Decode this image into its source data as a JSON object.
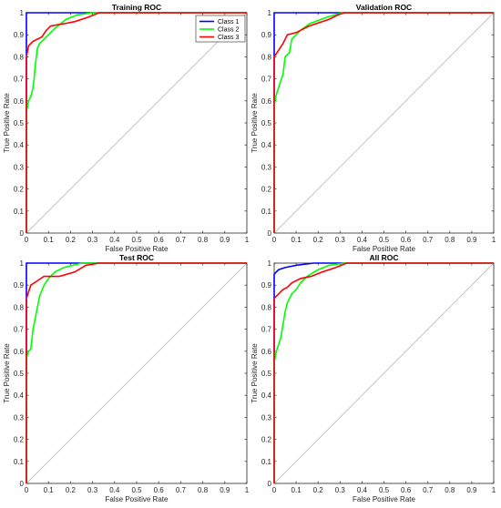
{
  "chart_data": [
    {
      "type": "line",
      "title": "Training ROC",
      "xlabel": "False Positive Rate",
      "ylabel": "True Positive Rate",
      "xlim": [
        0,
        1
      ],
      "ylim": [
        0,
        1
      ],
      "x_ticks": [
        "0",
        "0.1",
        "0.2",
        "0.3",
        "0.4",
        "0.5",
        "0.6",
        "0.7",
        "0.8",
        "0.9",
        "1"
      ],
      "y_ticks": [
        "0",
        "0.1",
        "0.2",
        "0.3",
        "0.4",
        "0.5",
        "0.6",
        "0.7",
        "0.8",
        "0.9",
        "1"
      ],
      "grid": false,
      "legend": {
        "placement": "top-right",
        "entries": [
          "Class 1",
          "Class 2",
          "Class 3"
        ]
      },
      "diagonal_color": "#bdbdbd",
      "series": [
        {
          "name": "Class 1",
          "color": "#0000ff",
          "points": [
            [
              0,
              0
            ],
            [
              0,
              0.8
            ],
            [
              0,
              1
            ],
            [
              0.17,
              1
            ],
            [
              1,
              1
            ]
          ]
        },
        {
          "name": "Class 2",
          "color": "#00ff00",
          "points": [
            [
              0,
              0
            ],
            [
              0,
              0.55
            ],
            [
              0.01,
              0.6
            ],
            [
              0.02,
              0.62
            ],
            [
              0.03,
              0.66
            ],
            [
              0.035,
              0.7
            ],
            [
              0.04,
              0.76
            ],
            [
              0.045,
              0.8
            ],
            [
              0.05,
              0.84
            ],
            [
              0.06,
              0.86
            ],
            [
              0.08,
              0.88
            ],
            [
              0.1,
              0.9
            ],
            [
              0.13,
              0.93
            ],
            [
              0.18,
              0.97
            ],
            [
              0.23,
              0.99
            ],
            [
              0.3,
              1
            ],
            [
              1,
              1
            ]
          ]
        },
        {
          "name": "Class 3",
          "color": "#ff0000",
          "points": [
            [
              0,
              0
            ],
            [
              0,
              0.8
            ],
            [
              0.01,
              0.85
            ],
            [
              0.03,
              0.87
            ],
            [
              0.07,
              0.89
            ],
            [
              0.09,
              0.92
            ],
            [
              0.11,
              0.94
            ],
            [
              0.17,
              0.95
            ],
            [
              0.22,
              0.96
            ],
            [
              0.28,
              0.98
            ],
            [
              0.33,
              1
            ],
            [
              1,
              1
            ]
          ]
        }
      ]
    },
    {
      "type": "line",
      "title": "Validation ROC",
      "xlabel": "False Positive Rate",
      "ylabel": "True Positive Rate",
      "xlim": [
        0,
        1
      ],
      "ylim": [
        0,
        1
      ],
      "x_ticks": [
        "0",
        "0.1",
        "0.2",
        "0.3",
        "0.4",
        "0.5",
        "0.6",
        "0.7",
        "0.8",
        "0.9",
        "1"
      ],
      "y_ticks": [
        "0",
        "0.1",
        "0.2",
        "0.3",
        "0.4",
        "0.5",
        "0.6",
        "0.7",
        "0.8",
        "0.9",
        "1"
      ],
      "grid": false,
      "diagonal_color": "#bdbdbd",
      "series": [
        {
          "name": "Class 1",
          "color": "#0000ff",
          "points": [
            [
              0,
              0
            ],
            [
              0,
              0.8
            ],
            [
              0,
              1
            ],
            [
              0.19,
              1
            ],
            [
              1,
              1
            ]
          ]
        },
        {
          "name": "Class 2",
          "color": "#00ff00",
          "points": [
            [
              0,
              0
            ],
            [
              0,
              0.58
            ],
            [
              0.01,
              0.63
            ],
            [
              0.02,
              0.66
            ],
            [
              0.04,
              0.72
            ],
            [
              0.05,
              0.8
            ],
            [
              0.07,
              0.82
            ],
            [
              0.08,
              0.88
            ],
            [
              0.1,
              0.9
            ],
            [
              0.12,
              0.92
            ],
            [
              0.16,
              0.95
            ],
            [
              0.24,
              0.98
            ],
            [
              0.31,
              1
            ],
            [
              1,
              1
            ]
          ]
        },
        {
          "name": "Class 3",
          "color": "#ff0000",
          "points": [
            [
              0,
              0
            ],
            [
              0,
              0.8
            ],
            [
              0.02,
              0.83
            ],
            [
              0.04,
              0.86
            ],
            [
              0.06,
              0.9
            ],
            [
              0.1,
              0.91
            ],
            [
              0.16,
              0.94
            ],
            [
              0.25,
              0.97
            ],
            [
              0.29,
              0.99
            ],
            [
              0.32,
              1
            ],
            [
              1,
              1
            ]
          ]
        }
      ]
    },
    {
      "type": "line",
      "title": "Test ROC",
      "xlabel": "False Positive Rate",
      "ylabel": "True Positive Rate",
      "xlim": [
        0,
        1
      ],
      "ylim": [
        0,
        1
      ],
      "x_ticks": [
        "0",
        "0.1",
        "0.2",
        "0.3",
        "0.4",
        "0.5",
        "0.6",
        "0.7",
        "0.8",
        "0.9",
        "1"
      ],
      "y_ticks": [
        "0",
        "0.1",
        "0.2",
        "0.3",
        "0.4",
        "0.5",
        "0.6",
        "0.7",
        "0.8",
        "0.9",
        "1"
      ],
      "grid": false,
      "diagonal_color": "#bdbdbd",
      "series": [
        {
          "name": "Class 1",
          "color": "#0000ff",
          "points": [
            [
              0,
              0
            ],
            [
              0,
              0.8
            ],
            [
              0,
              1
            ],
            [
              0.13,
              1
            ],
            [
              1,
              1
            ]
          ]
        },
        {
          "name": "Class 2",
          "color": "#00ff00",
          "points": [
            [
              0,
              0
            ],
            [
              0,
              0.57
            ],
            [
              0.01,
              0.6
            ],
            [
              0.02,
              0.61
            ],
            [
              0.03,
              0.7
            ],
            [
              0.04,
              0.75
            ],
            [
              0.05,
              0.8
            ],
            [
              0.06,
              0.85
            ],
            [
              0.08,
              0.9
            ],
            [
              0.1,
              0.93
            ],
            [
              0.13,
              0.96
            ],
            [
              0.17,
              0.98
            ],
            [
              0.25,
              1
            ],
            [
              1,
              1
            ]
          ]
        },
        {
          "name": "Class 3",
          "color": "#ff0000",
          "points": [
            [
              0,
              0
            ],
            [
              0,
              0.84
            ],
            [
              0.02,
              0.9
            ],
            [
              0.05,
              0.92
            ],
            [
              0.08,
              0.94
            ],
            [
              0.15,
              0.94
            ],
            [
              0.22,
              0.96
            ],
            [
              0.27,
              0.99
            ],
            [
              0.33,
              1
            ],
            [
              1,
              1
            ]
          ]
        }
      ]
    },
    {
      "type": "line",
      "title": "All ROC",
      "xlabel": "False Positive Rate",
      "ylabel": "True Positive Rate",
      "xlim": [
        0,
        1
      ],
      "ylim": [
        0,
        1
      ],
      "x_ticks": [
        "0",
        "0.1",
        "0.2",
        "0.3",
        "0.4",
        "0.5",
        "0.6",
        "0.7",
        "0.8",
        "0.9",
        "1"
      ],
      "y_ticks": [
        "0",
        "0.1",
        "0.2",
        "0.3",
        "0.4",
        "0.5",
        "0.6",
        "0.7",
        "0.8",
        "0.9",
        "1"
      ],
      "grid": false,
      "diagonal_color": "#bdbdbd",
      "series": [
        {
          "name": "Class 1",
          "color": "#0000ff",
          "points": [
            [
              0,
              0
            ],
            [
              0,
              0.8
            ],
            [
              0,
              0.95
            ],
            [
              0.02,
              0.97
            ],
            [
              0.05,
              0.98
            ],
            [
              0.1,
              0.99
            ],
            [
              0.18,
              1
            ],
            [
              1,
              1
            ]
          ]
        },
        {
          "name": "Class 2",
          "color": "#00ff00",
          "points": [
            [
              0,
              0
            ],
            [
              0,
              0.55
            ],
            [
              0.01,
              0.6
            ],
            [
              0.02,
              0.63
            ],
            [
              0.03,
              0.66
            ],
            [
              0.04,
              0.72
            ],
            [
              0.05,
              0.78
            ],
            [
              0.06,
              0.82
            ],
            [
              0.08,
              0.86
            ],
            [
              0.1,
              0.88
            ],
            [
              0.12,
              0.91
            ],
            [
              0.15,
              0.94
            ],
            [
              0.2,
              0.97
            ],
            [
              0.25,
              0.99
            ],
            [
              0.32,
              1
            ],
            [
              1,
              1
            ]
          ]
        },
        {
          "name": "Class 3",
          "color": "#ff0000",
          "points": [
            [
              0,
              0
            ],
            [
              0,
              0.84
            ],
            [
              0.02,
              0.86
            ],
            [
              0.04,
              0.88
            ],
            [
              0.06,
              0.89
            ],
            [
              0.08,
              0.91
            ],
            [
              0.12,
              0.93
            ],
            [
              0.17,
              0.94
            ],
            [
              0.22,
              0.96
            ],
            [
              0.28,
              0.98
            ],
            [
              0.33,
              1
            ],
            [
              1,
              1
            ]
          ]
        }
      ]
    }
  ]
}
